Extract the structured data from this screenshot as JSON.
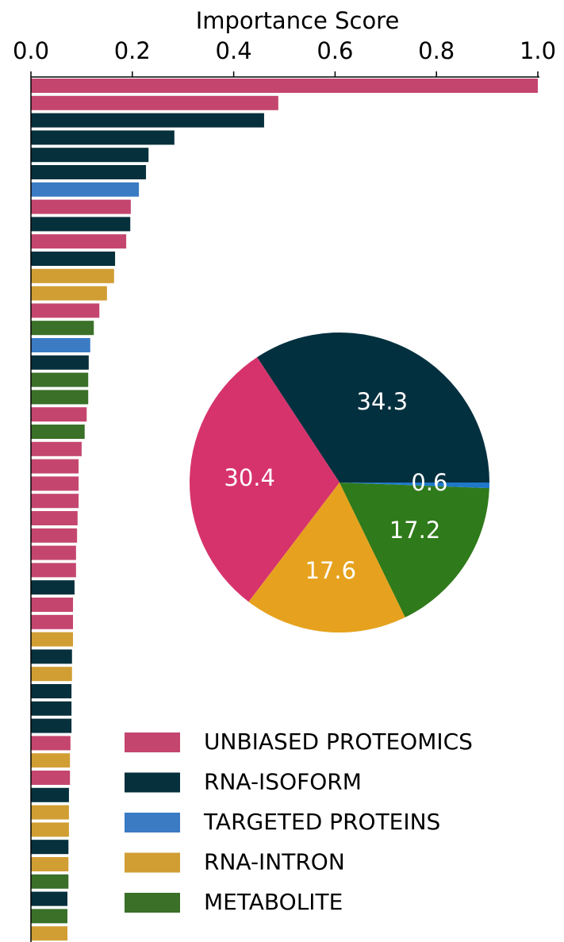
{
  "chart_data": [
    {
      "type": "barh",
      "xlabel": "Importance Score",
      "xlim": [
        0,
        1.0
      ],
      "xticks": [
        {
          "value": 0,
          "label": "0.0"
        },
        0.2,
        0.4,
        0.6,
        0.8,
        {
          "value": 1.0,
          "label": "1.0"
        }
      ],
      "values": [
        1.0,
        0.488,
        0.46,
        0.283,
        0.232,
        0.227,
        0.213,
        0.197,
        0.196,
        0.188,
        0.166,
        0.164,
        0.15,
        0.135,
        0.124,
        0.117,
        0.114,
        0.113,
        0.113,
        0.11,
        0.106,
        0.1,
        0.094,
        0.094,
        0.094,
        0.092,
        0.091,
        0.089,
        0.089,
        0.086,
        0.083,
        0.083,
        0.083,
        0.081,
        0.081,
        0.08,
        0.08,
        0.08,
        0.078,
        0.077,
        0.077,
        0.075,
        0.075,
        0.075,
        0.074,
        0.074,
        0.074,
        0.072,
        0.072,
        0.072
      ],
      "groups": [
        0,
        0,
        1,
        1,
        1,
        1,
        2,
        0,
        1,
        0,
        1,
        3,
        3,
        0,
        4,
        2,
        1,
        4,
        4,
        0,
        4,
        0,
        0,
        0,
        0,
        0,
        0,
        0,
        0,
        1,
        0,
        0,
        3,
        1,
        3,
        1,
        1,
        1,
        0,
        3,
        0,
        1,
        3,
        3,
        1,
        3,
        4,
        1,
        4,
        3
      ],
      "legend": [
        {
          "name": "UNBIASED PROTEOMICS",
          "color": "#c4466f"
        },
        {
          "name": "RNA-ISOFORM",
          "color": "#06303c"
        },
        {
          "name": "TARGETED PROTEINS",
          "color": "#3a7bc4"
        },
        {
          "name": "RNA-INTRON",
          "color": "#d19e34"
        },
        {
          "name": "METABOLITE",
          "color": "#3a7028"
        }
      ]
    },
    {
      "type": "pie",
      "values": [
        34.3,
        30.4,
        17.6,
        17.2,
        0.6
      ],
      "colors": [
        "#03303f",
        "#d6336c",
        "#e6a21e",
        "#2f7a1a",
        "#1f78c8"
      ]
    }
  ]
}
